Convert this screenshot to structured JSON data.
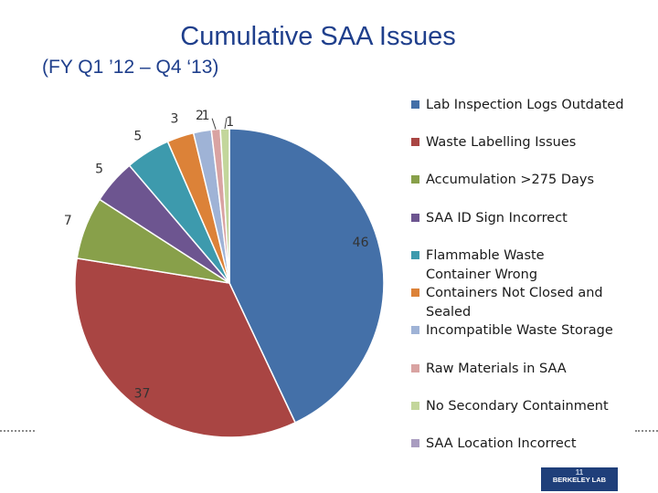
{
  "header": {
    "title": "Cumulative SAA Issues",
    "subtitle": "(FY Q1 ’12 – Q4 ‘13)"
  },
  "chart_data": {
    "type": "pie",
    "title": "Cumulative SAA Issues",
    "subtitle": "(FY Q1 ’12 – Q4 ‘13)",
    "legend_position": "right",
    "slices": [
      {
        "label": "Lab Inspection Logs Outdated",
        "value": 46,
        "color": "#4470a8"
      },
      {
        "label": "Waste Labelling Issues",
        "value": 37,
        "color": "#a94543"
      },
      {
        "label": "Accumulation >275 Days",
        "value": 7,
        "color": "#88a04a"
      },
      {
        "label": "SAA ID Sign Incorrect",
        "value": 5,
        "color": "#6d5590"
      },
      {
        "label": "Flammable Waste Container Wrong",
        "value": 5,
        "color": "#3d9aad"
      },
      {
        "label": "Containers Not Closed and Sealed",
        "value": 3,
        "color": "#dc8238"
      },
      {
        "label": "Incompatible Waste Storage",
        "value": 2,
        "color": "#9fb3d6"
      },
      {
        "label": "Raw Materials in SAA",
        "value": 1,
        "color": "#d9a3a2"
      },
      {
        "label": "No Secondary Containment",
        "value": 1,
        "color": "#c3d69b"
      },
      {
        "label": "SAA Location Incorrect",
        "value": 0,
        "color": "#a99cc0"
      }
    ]
  },
  "logo": {
    "page_number": "11",
    "text": "BERKELEY LAB"
  }
}
